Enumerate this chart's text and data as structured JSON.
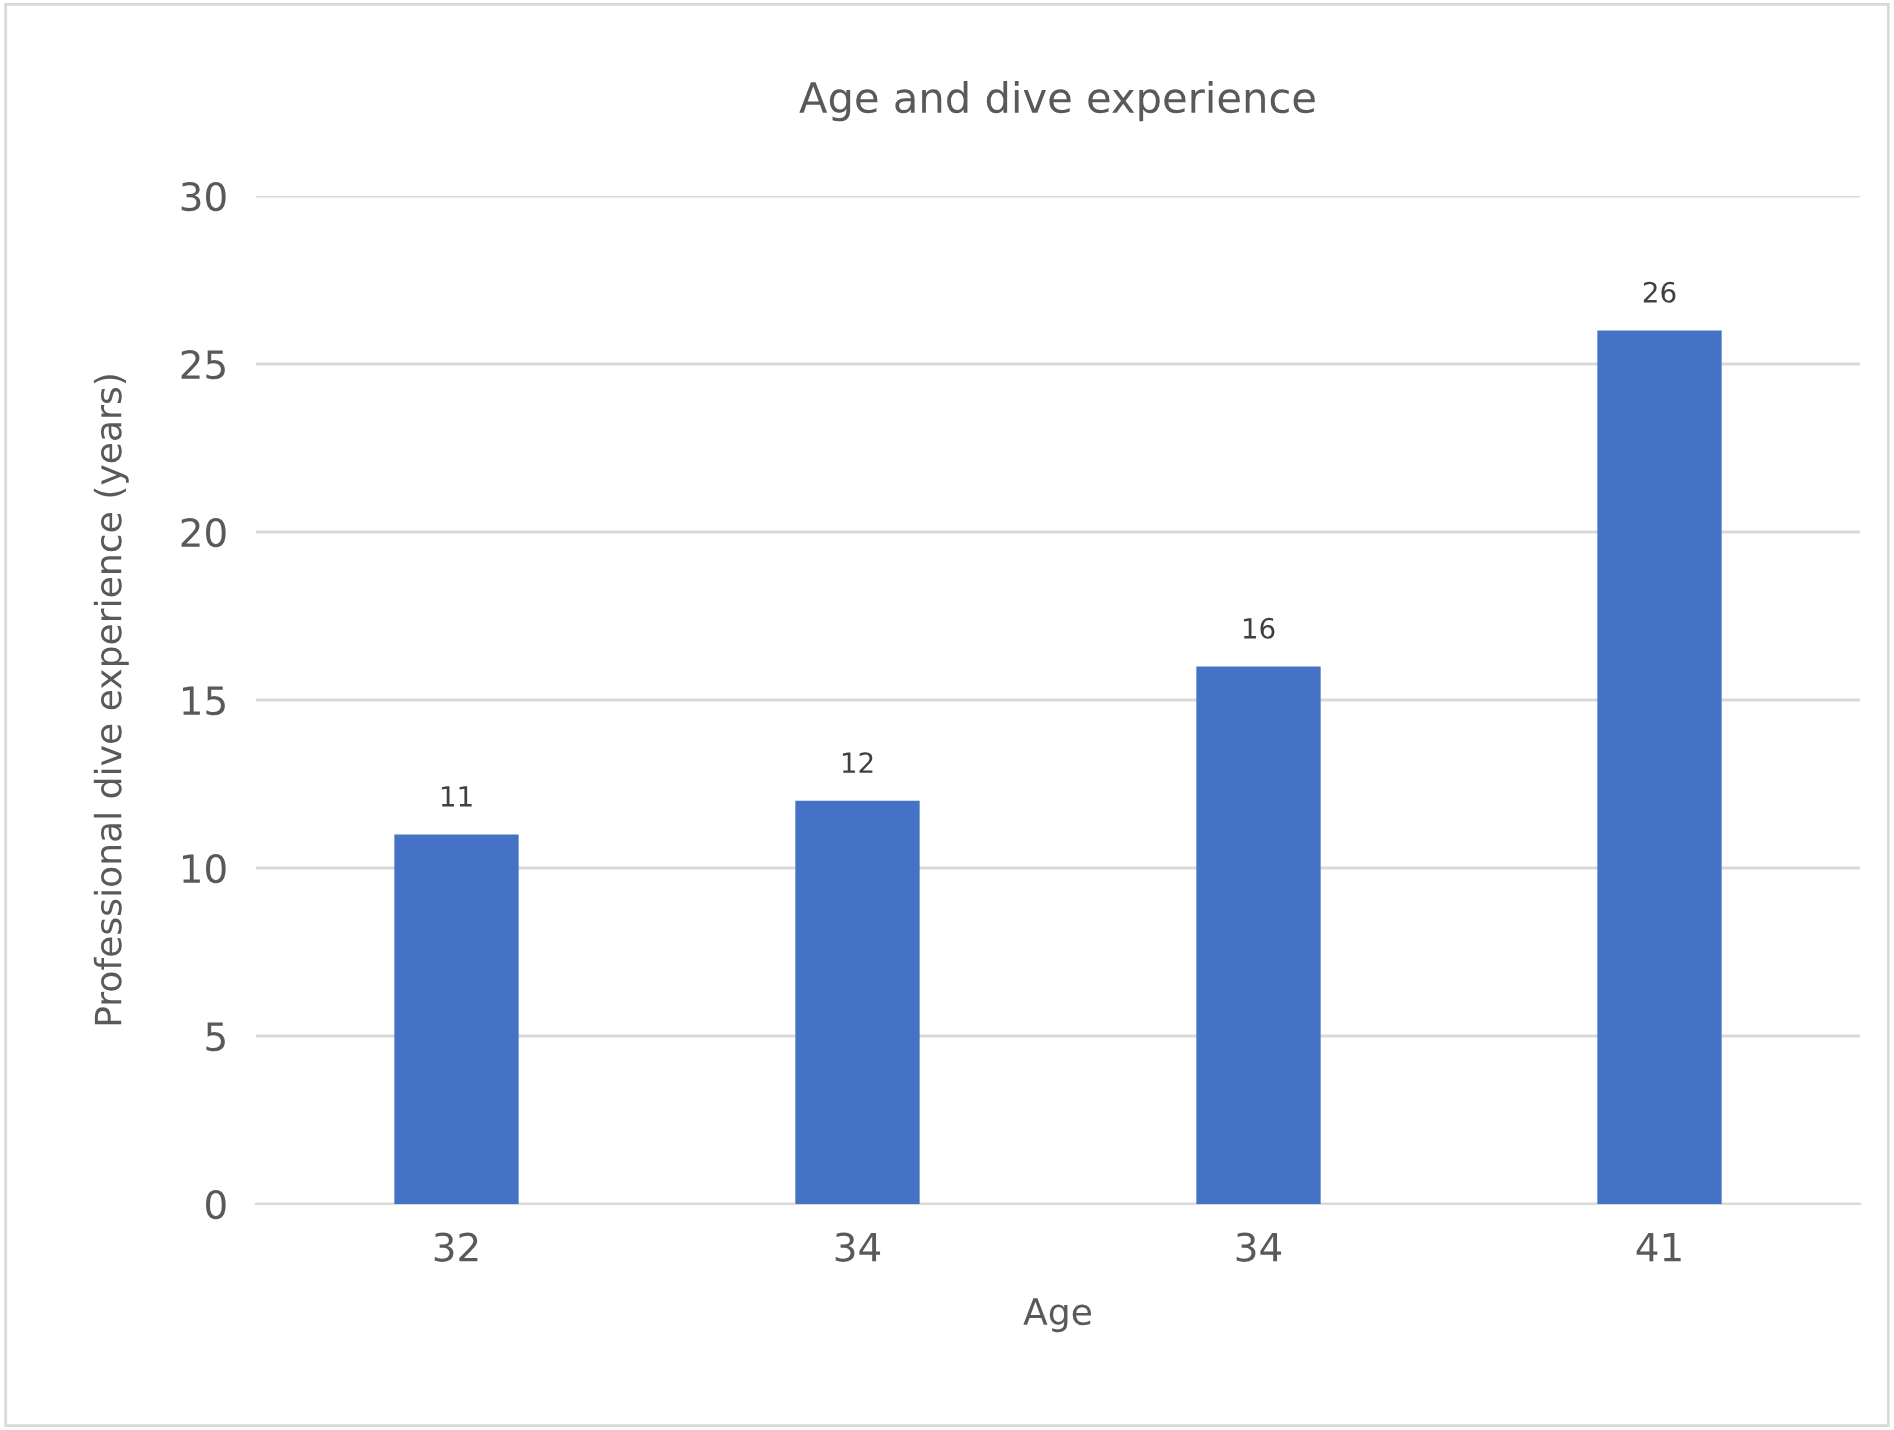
{
  "chart_data": {
    "type": "bar",
    "title": "Age and dive experience",
    "xlabel": "Age",
    "ylabel": "Professional dive experience (years)",
    "categories": [
      "32",
      "34",
      "34",
      "41"
    ],
    "values": [
      11,
      12,
      16,
      26
    ],
    "color": "#4472c4",
    "ylim": [
      0,
      30
    ],
    "yticks": [
      0,
      5,
      10,
      15,
      20,
      25,
      30
    ],
    "grid": "y",
    "data_labels": true
  }
}
